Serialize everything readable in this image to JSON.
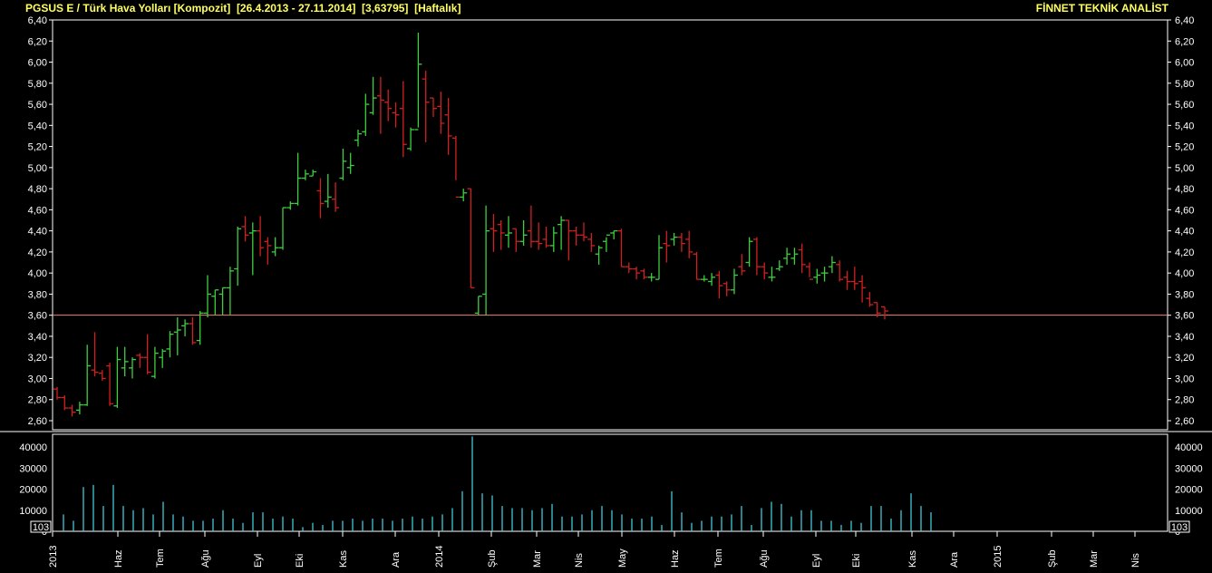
{
  "header": {
    "symbol": "PGSUS E / Türk Hava Yolları [Kompozit]",
    "date_range": "[26.4.2013 - 27.11.2014]",
    "last_value": "[3,63795]",
    "period": "[Haftalık]",
    "brand": "FİNNET TEKNİK ANALİST"
  },
  "colors": {
    "up": "#3ecf3e",
    "down": "#d02020",
    "volume": "#40c8d8",
    "hline": "#f08070",
    "header": "#ffff60"
  },
  "chart_data": [
    {
      "type": "ohlc",
      "ylim": [
        2.5,
        6.4
      ],
      "yticks": [
        "6,40",
        "6,20",
        "6,00",
        "5,80",
        "5,60",
        "5,40",
        "5,20",
        "5,00",
        "4,80",
        "4,60",
        "4,40",
        "4,20",
        "4,00",
        "3,80",
        "3,60",
        "3,40",
        "3,20",
        "3,00",
        "2,80",
        "2,60"
      ],
      "hline": 3.6,
      "bars": [
        [
          2.9,
          2.92,
          2.8,
          2.82
        ],
        [
          2.82,
          2.84,
          2.7,
          2.72
        ],
        [
          2.72,
          2.75,
          2.64,
          2.68
        ],
        [
          2.7,
          2.78,
          2.66,
          2.75
        ],
        [
          2.75,
          3.32,
          2.74,
          3.12
        ],
        [
          3.08,
          3.44,
          3.02,
          3.06
        ],
        [
          3.05,
          3.08,
          2.98,
          3.0
        ],
        [
          3.12,
          3.15,
          2.74,
          2.76
        ],
        [
          2.74,
          3.3,
          2.72,
          3.18
        ],
        [
          3.1,
          3.3,
          3.02,
          3.16
        ],
        [
          3.1,
          3.2,
          3.0,
          3.18
        ],
        [
          3.22,
          3.24,
          3.1,
          3.2
        ],
        [
          3.2,
          3.42,
          3.04,
          3.06
        ],
        [
          3.02,
          3.3,
          3.0,
          3.24
        ],
        [
          3.2,
          3.28,
          3.1,
          3.26
        ],
        [
          3.28,
          3.45,
          3.2,
          3.42
        ],
        [
          3.44,
          3.58,
          3.22,
          3.46
        ],
        [
          3.5,
          3.56,
          3.4,
          3.52
        ],
        [
          3.52,
          3.58,
          3.32,
          3.34
        ],
        [
          3.36,
          3.64,
          3.32,
          3.62
        ],
        [
          3.62,
          3.98,
          3.58,
          3.8
        ],
        [
          3.78,
          3.84,
          3.6,
          3.84
        ],
        [
          3.8,
          3.86,
          3.6,
          3.86
        ],
        [
          3.86,
          4.06,
          3.6,
          4.02
        ],
        [
          4.04,
          4.44,
          3.88,
          4.42
        ],
        [
          4.44,
          4.54,
          4.3,
          4.36
        ],
        [
          4.38,
          4.48,
          3.98,
          4.4
        ],
        [
          4.4,
          4.54,
          4.16,
          4.24
        ],
        [
          4.3,
          4.34,
          4.08,
          4.26
        ],
        [
          4.2,
          4.34,
          4.16,
          4.24
        ],
        [
          4.24,
          4.62,
          4.22,
          4.62
        ],
        [
          4.62,
          4.68,
          4.6,
          4.66
        ],
        [
          4.66,
          5.14,
          4.64,
          4.9
        ],
        [
          4.9,
          4.98,
          4.88,
          4.94
        ],
        [
          4.92,
          4.98,
          4.92,
          4.96
        ],
        [
          4.78,
          4.9,
          4.52,
          4.66
        ],
        [
          4.68,
          4.94,
          4.62,
          4.72
        ],
        [
          4.7,
          4.86,
          4.58,
          4.62
        ],
        [
          4.9,
          5.18,
          4.88,
          5.06
        ],
        [
          5.0,
          5.14,
          4.94,
          5.02
        ],
        [
          5.26,
          5.36,
          5.2,
          5.32
        ],
        [
          5.34,
          5.7,
          5.3,
          5.6
        ],
        [
          5.52,
          5.86,
          5.5,
          5.66
        ],
        [
          5.68,
          5.86,
          5.32,
          5.64
        ],
        [
          5.62,
          5.74,
          5.44,
          5.56
        ],
        [
          5.52,
          5.62,
          5.38,
          5.5
        ],
        [
          5.56,
          5.82,
          5.1,
          5.22
        ],
        [
          5.18,
          5.38,
          5.16,
          5.36
        ],
        [
          5.36,
          6.28,
          5.38,
          5.98
        ],
        [
          5.84,
          5.92,
          5.24,
          5.62
        ],
        [
          5.66,
          5.66,
          5.48,
          5.56
        ],
        [
          5.58,
          5.72,
          5.32,
          5.42
        ],
        [
          5.5,
          5.66,
          5.12,
          5.3
        ],
        [
          5.28,
          5.3,
          4.88,
          4.72
        ],
        [
          4.72,
          4.8,
          4.68,
          4.76
        ],
        [
          4.8,
          4.8,
          3.86,
          3.86
        ],
        [
          3.62,
          3.78,
          3.6,
          3.78
        ],
        [
          3.8,
          4.64,
          3.6,
          4.4
        ],
        [
          4.42,
          4.56,
          4.2,
          4.4
        ],
        [
          4.46,
          4.5,
          4.22,
          4.38
        ],
        [
          4.36,
          4.54,
          4.24,
          4.38
        ],
        [
          4.42,
          4.42,
          4.2,
          4.3
        ],
        [
          4.3,
          4.5,
          4.26,
          4.36
        ],
        [
          4.4,
          4.64,
          4.24,
          4.3
        ],
        [
          4.3,
          4.48,
          4.22,
          4.28
        ],
        [
          4.32,
          4.44,
          4.24,
          4.26
        ],
        [
          4.26,
          4.44,
          4.2,
          4.38
        ],
        [
          4.46,
          4.54,
          4.22,
          4.5
        ],
        [
          4.5,
          4.5,
          4.12,
          4.4
        ],
        [
          4.4,
          4.44,
          4.26,
          4.36
        ],
        [
          4.36,
          4.48,
          4.3,
          4.34
        ],
        [
          4.32,
          4.38,
          4.2,
          4.26
        ],
        [
          4.18,
          4.26,
          4.08,
          4.24
        ],
        [
          4.3,
          4.34,
          4.2,
          4.36
        ],
        [
          4.38,
          4.4,
          4.32,
          4.4
        ],
        [
          4.4,
          4.42,
          4.06,
          4.06
        ],
        [
          4.06,
          4.1,
          4.0,
          4.04
        ],
        [
          4.04,
          4.06,
          3.94,
          4.0
        ],
        [
          4.02,
          4.04,
          3.94,
          3.96
        ],
        [
          3.96,
          4.0,
          3.92,
          3.96
        ],
        [
          3.94,
          4.36,
          3.94,
          4.24
        ],
        [
          4.28,
          4.4,
          4.1,
          4.26
        ],
        [
          4.32,
          4.38,
          4.26,
          4.34
        ],
        [
          4.34,
          4.38,
          4.2,
          4.28
        ],
        [
          4.32,
          4.4,
          4.14,
          4.2
        ],
        [
          4.18,
          4.2,
          3.94,
          3.94
        ],
        [
          3.94,
          3.98,
          3.92,
          3.94
        ],
        [
          3.92,
          4.0,
          3.88,
          3.96
        ],
        [
          3.98,
          4.02,
          3.76,
          3.88
        ],
        [
          3.9,
          3.92,
          3.78,
          3.84
        ],
        [
          3.84,
          4.04,
          3.8,
          3.98
        ],
        [
          4.06,
          4.18,
          3.98,
          4.02
        ],
        [
          4.1,
          4.34,
          4.06,
          4.3
        ],
        [
          4.32,
          4.34,
          3.98,
          4.06
        ],
        [
          4.06,
          4.1,
          3.94,
          4.0
        ],
        [
          3.96,
          4.06,
          3.92,
          3.96
        ],
        [
          4.04,
          4.12,
          4.02,
          4.06
        ],
        [
          4.14,
          4.24,
          4.08,
          4.18
        ],
        [
          4.14,
          4.24,
          4.08,
          4.18
        ],
        [
          4.22,
          4.28,
          4.0,
          4.08
        ],
        [
          4.06,
          4.1,
          3.96,
          3.94
        ],
        [
          3.96,
          4.04,
          3.9,
          3.98
        ],
        [
          4.0,
          4.06,
          3.92,
          4.0
        ],
        [
          4.06,
          4.16,
          4.0,
          4.1
        ],
        [
          4.08,
          4.12,
          3.92,
          3.94
        ],
        [
          3.96,
          4.02,
          3.84,
          3.92
        ],
        [
          3.92,
          4.06,
          3.84,
          3.9
        ],
        [
          3.92,
          3.98,
          3.72,
          3.86
        ],
        [
          3.76,
          3.82,
          3.68,
          3.7
        ],
        [
          3.72,
          3.72,
          3.58,
          3.62
        ],
        [
          3.68,
          3.68,
          3.56,
          3.64
        ]
      ]
    },
    {
      "type": "bar",
      "ylim": [
        0,
        45000
      ],
      "yticks": [
        "40000",
        "30000",
        "20000",
        "10000",
        "0"
      ],
      "unit_label": "10^3",
      "values": [
        8000,
        5000,
        21000,
        22000,
        12000,
        22000,
        12000,
        10000,
        11000,
        8000,
        14000,
        8000,
        7000,
        5000,
        5000,
        6000,
        10000,
        6000,
        4000,
        9000,
        9000,
        6000,
        7000,
        6000,
        2000,
        4000,
        3000,
        5000,
        5000,
        6000,
        5000,
        6000,
        6000,
        5000,
        6000,
        7000,
        6000,
        7000,
        8000,
        11000,
        19000,
        45000,
        18000,
        17000,
        12000,
        11000,
        11000,
        10000,
        11000,
        13000,
        7000,
        7000,
        8000,
        10000,
        12000,
        10000,
        8000,
        6000,
        6000,
        7000,
        3000,
        19000,
        9000,
        4000,
        5000,
        7000,
        7000,
        8000,
        12000,
        3000,
        11000,
        14000,
        13000,
        7000,
        10000,
        10000,
        5000,
        5000,
        3000,
        5000,
        4000,
        12000,
        12000,
        6000,
        10000,
        18000,
        12000,
        9000
      ],
      "x_labels": [
        "2013",
        "Haz",
        "Tem",
        "Ağu",
        "Eyl",
        "Eki",
        "Kas",
        "Ara",
        "2014",
        "Şub",
        "Mar",
        "Nis",
        "May",
        "Haz",
        "Tem",
        "Ağu",
        "Eyl",
        "Eki",
        "Kas",
        "Ara",
        "2015",
        "Şub",
        "Mar",
        "Nis"
      ]
    }
  ]
}
